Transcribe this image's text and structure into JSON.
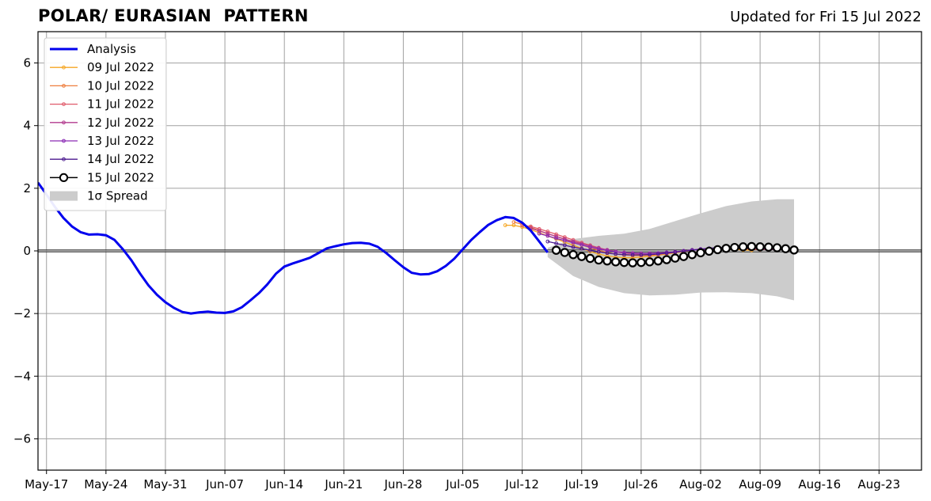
{
  "chart_data": {
    "type": "line",
    "title": "POLAR/ EURASIAN  PATTERN",
    "subtitle": "Updated for Fri 15 Jul 2022",
    "xlabel": "",
    "ylabel": "",
    "x_axis": {
      "type": "date",
      "range": [
        "2022-05-16",
        "2022-08-28"
      ],
      "ticks": [
        {
          "date": "2022-05-17",
          "label": "May-17"
        },
        {
          "date": "2022-05-24",
          "label": "May-24"
        },
        {
          "date": "2022-05-31",
          "label": "May-31"
        },
        {
          "date": "2022-06-07",
          "label": "Jun-07"
        },
        {
          "date": "2022-06-14",
          "label": "Jun-14"
        },
        {
          "date": "2022-06-21",
          "label": "Jun-21"
        },
        {
          "date": "2022-06-28",
          "label": "Jun-28"
        },
        {
          "date": "2022-07-05",
          "label": "Jul-05"
        },
        {
          "date": "2022-07-12",
          "label": "Jul-12"
        },
        {
          "date": "2022-07-19",
          "label": "Jul-19"
        },
        {
          "date": "2022-07-26",
          "label": "Jul-26"
        },
        {
          "date": "2022-08-02",
          "label": "Aug-02"
        },
        {
          "date": "2022-08-09",
          "label": "Aug-09"
        },
        {
          "date": "2022-08-16",
          "label": "Aug-16"
        },
        {
          "date": "2022-08-23",
          "label": "Aug-23"
        }
      ]
    },
    "y_axis": {
      "range": [
        -7,
        7
      ],
      "ticks": [
        {
          "value": 6,
          "label": "6"
        },
        {
          "value": 4,
          "label": "4"
        },
        {
          "value": 2,
          "label": "2"
        },
        {
          "value": 0,
          "label": "0"
        },
        {
          "value": -2,
          "label": "−2"
        },
        {
          "value": -4,
          "label": "−4"
        },
        {
          "value": -6,
          "label": "−6"
        }
      ]
    },
    "grid": true,
    "zero_line": true,
    "legend_position": "top-left",
    "spread": {
      "name": "1σ Spread",
      "color": "#cccccc",
      "dates": [
        "2022-07-15",
        "2022-07-18",
        "2022-07-21",
        "2022-07-24",
        "2022-07-27",
        "2022-07-30",
        "2022-08-02",
        "2022-08-05",
        "2022-08-08",
        "2022-08-11",
        "2022-08-13"
      ],
      "upper": [
        0.1,
        0.38,
        0.48,
        0.55,
        0.7,
        0.95,
        1.2,
        1.43,
        1.58,
        1.65,
        1.65
      ],
      "lower": [
        -0.2,
        -0.8,
        -1.15,
        -1.35,
        -1.42,
        -1.4,
        -1.33,
        -1.32,
        -1.35,
        -1.45,
        -1.58
      ]
    },
    "series": [
      {
        "name": "Analysis",
        "color": "#0000ee",
        "style": "analysis",
        "dates": [
          "2022-05-16",
          "2022-05-17",
          "2022-05-18",
          "2022-05-19",
          "2022-05-20",
          "2022-05-21",
          "2022-05-22",
          "2022-05-23",
          "2022-05-24",
          "2022-05-25",
          "2022-05-26",
          "2022-05-27",
          "2022-05-28",
          "2022-05-29",
          "2022-05-30",
          "2022-05-31",
          "2022-06-01",
          "2022-06-02",
          "2022-06-03",
          "2022-06-04",
          "2022-06-05",
          "2022-06-06",
          "2022-06-07",
          "2022-06-08",
          "2022-06-09",
          "2022-06-10",
          "2022-06-11",
          "2022-06-12",
          "2022-06-13",
          "2022-06-14",
          "2022-06-15",
          "2022-06-16",
          "2022-06-17",
          "2022-06-18",
          "2022-06-19",
          "2022-06-20",
          "2022-06-21",
          "2022-06-22",
          "2022-06-23",
          "2022-06-24",
          "2022-06-25",
          "2022-06-26",
          "2022-06-27",
          "2022-06-28",
          "2022-06-29",
          "2022-06-30",
          "2022-07-01",
          "2022-07-02",
          "2022-07-03",
          "2022-07-04",
          "2022-07-05",
          "2022-07-06",
          "2022-07-07",
          "2022-07-08",
          "2022-07-09",
          "2022-07-10",
          "2022-07-11",
          "2022-07-12",
          "2022-07-13",
          "2022-07-14",
          "2022-07-15"
        ],
        "values": [
          2.18,
          1.8,
          1.4,
          1.05,
          0.78,
          0.6,
          0.52,
          0.53,
          0.5,
          0.35,
          0.05,
          -0.3,
          -0.72,
          -1.1,
          -1.4,
          -1.64,
          -1.82,
          -1.95,
          -2.0,
          -1.96,
          -1.94,
          -1.97,
          -1.98,
          -1.93,
          -1.8,
          -1.58,
          -1.35,
          -1.07,
          -0.73,
          -0.5,
          -0.4,
          -0.31,
          -0.22,
          -0.07,
          0.08,
          0.15,
          0.21,
          0.25,
          0.26,
          0.23,
          0.13,
          -0.07,
          -0.3,
          -0.52,
          -0.7,
          -0.75,
          -0.74,
          -0.65,
          -0.48,
          -0.25,
          0.05,
          0.35,
          0.6,
          0.83,
          0.98,
          1.08,
          1.05,
          0.9,
          0.65,
          0.3,
          -0.05
        ]
      },
      {
        "name": "09 Jul 2022",
        "color": "#f5a623",
        "style": "small",
        "dates": [
          "2022-07-10",
          "2022-07-11",
          "2022-07-12",
          "2022-07-13",
          "2022-07-14",
          "2022-07-15",
          "2022-07-16",
          "2022-07-17",
          "2022-07-18",
          "2022-07-19",
          "2022-07-20",
          "2022-07-21",
          "2022-07-22",
          "2022-07-23",
          "2022-07-24",
          "2022-07-25",
          "2022-07-26",
          "2022-07-27",
          "2022-07-28",
          "2022-07-29",
          "2022-07-30",
          "2022-07-31",
          "2022-08-01",
          "2022-08-02",
          "2022-08-03",
          "2022-08-04",
          "2022-08-05",
          "2022-08-06",
          "2022-08-07",
          "2022-08-08"
        ],
        "values": [
          0.82,
          0.82,
          0.76,
          0.68,
          0.58,
          0.48,
          0.38,
          0.28,
          0.18,
          0.08,
          -0.02,
          -0.1,
          -0.16,
          -0.2,
          -0.22,
          -0.22,
          -0.2,
          -0.17,
          -0.14,
          -0.1,
          -0.06,
          -0.02,
          0.02,
          0.05,
          0.07,
          0.08,
          0.07,
          0.05,
          0.03,
          0.02
        ]
      },
      {
        "name": "10 Jul 2022",
        "color": "#ee7d3d",
        "style": "small",
        "dates": [
          "2022-07-11",
          "2022-07-12",
          "2022-07-13",
          "2022-07-14",
          "2022-07-15",
          "2022-07-16",
          "2022-07-17",
          "2022-07-18",
          "2022-07-19",
          "2022-07-20",
          "2022-07-21",
          "2022-07-22",
          "2022-07-23",
          "2022-07-24",
          "2022-07-25",
          "2022-07-26",
          "2022-07-27",
          "2022-07-28",
          "2022-07-29",
          "2022-07-30",
          "2022-07-31",
          "2022-08-01",
          "2022-08-02",
          "2022-08-03",
          "2022-08-04",
          "2022-08-05",
          "2022-08-06",
          "2022-08-07",
          "2022-08-08",
          "2022-08-09"
        ],
        "values": [
          0.92,
          0.85,
          0.75,
          0.65,
          0.55,
          0.46,
          0.37,
          0.28,
          0.19,
          0.1,
          0.02,
          -0.05,
          -0.1,
          -0.13,
          -0.15,
          -0.15,
          -0.14,
          -0.12,
          -0.09,
          -0.05,
          -0.01,
          0.02,
          0.05,
          0.07,
          0.08,
          0.08,
          0.07,
          0.06,
          0.05,
          0.04
        ]
      },
      {
        "name": "11 Jul 2022",
        "color": "#e05a6a",
        "style": "small",
        "dates": [
          "2022-07-12",
          "2022-07-13",
          "2022-07-14",
          "2022-07-15",
          "2022-07-16",
          "2022-07-17",
          "2022-07-18",
          "2022-07-19",
          "2022-07-20",
          "2022-07-21",
          "2022-07-22",
          "2022-07-23",
          "2022-07-24",
          "2022-07-25",
          "2022-07-26",
          "2022-07-27",
          "2022-07-28",
          "2022-07-29",
          "2022-07-30",
          "2022-07-31",
          "2022-08-01",
          "2022-08-02",
          "2022-08-03",
          "2022-08-04",
          "2022-08-05",
          "2022-08-06",
          "2022-08-07",
          "2022-08-08",
          "2022-08-09",
          "2022-08-10"
        ],
        "values": [
          0.82,
          0.78,
          0.7,
          0.62,
          0.53,
          0.44,
          0.35,
          0.26,
          0.18,
          0.1,
          0.03,
          -0.03,
          -0.07,
          -0.09,
          -0.1,
          -0.1,
          -0.09,
          -0.07,
          -0.04,
          -0.01,
          0.02,
          0.05,
          0.07,
          0.08,
          0.08,
          0.08,
          0.07,
          0.06,
          0.05,
          0.04
        ]
      },
      {
        "name": "12 Jul 2022",
        "color": "#b23a8e",
        "style": "small",
        "dates": [
          "2022-07-13",
          "2022-07-14",
          "2022-07-15",
          "2022-07-16",
          "2022-07-17",
          "2022-07-18",
          "2022-07-19",
          "2022-07-20",
          "2022-07-21",
          "2022-07-22",
          "2022-07-23",
          "2022-07-24",
          "2022-07-25",
          "2022-07-26",
          "2022-07-27",
          "2022-07-28",
          "2022-07-29",
          "2022-07-30",
          "2022-07-31",
          "2022-08-01",
          "2022-08-02",
          "2022-08-03",
          "2022-08-04",
          "2022-08-05",
          "2022-08-06",
          "2022-08-07",
          "2022-08-08",
          "2022-08-09",
          "2022-08-10",
          "2022-08-11"
        ],
        "values": [
          0.72,
          0.64,
          0.55,
          0.46,
          0.38,
          0.3,
          0.23,
          0.16,
          0.09,
          0.03,
          -0.02,
          -0.05,
          -0.07,
          -0.08,
          -0.08,
          -0.07,
          -0.05,
          -0.03,
          0.0,
          0.03,
          0.05,
          0.07,
          0.08,
          0.09,
          0.09,
          0.08,
          0.07,
          0.06,
          0.05,
          0.04
        ]
      },
      {
        "name": "13 Jul 2022",
        "color": "#8a2ab5",
        "style": "small",
        "dates": [
          "2022-07-14",
          "2022-07-15",
          "2022-07-16",
          "2022-07-17",
          "2022-07-18",
          "2022-07-19",
          "2022-07-20",
          "2022-07-21",
          "2022-07-22",
          "2022-07-23",
          "2022-07-24",
          "2022-07-25",
          "2022-07-26",
          "2022-07-27",
          "2022-07-28",
          "2022-07-29",
          "2022-07-30",
          "2022-07-31",
          "2022-08-01",
          "2022-08-02",
          "2022-08-03",
          "2022-08-04",
          "2022-08-05",
          "2022-08-06",
          "2022-08-07",
          "2022-08-08",
          "2022-08-09",
          "2022-08-10",
          "2022-08-11",
          "2022-08-12"
        ],
        "values": [
          0.55,
          0.48,
          0.4,
          0.33,
          0.26,
          0.19,
          0.12,
          0.06,
          0.01,
          -0.03,
          -0.06,
          -0.07,
          -0.08,
          -0.08,
          -0.07,
          -0.05,
          -0.03,
          0.0,
          0.03,
          0.06,
          0.08,
          0.1,
          0.11,
          0.11,
          0.11,
          0.1,
          0.09,
          0.08,
          0.07,
          0.05
        ]
      },
      {
        "name": "14 Jul 2022",
        "color": "#4b1a8f",
        "style": "small",
        "dates": [
          "2022-07-15",
          "2022-07-16",
          "2022-07-17",
          "2022-07-18",
          "2022-07-19",
          "2022-07-20",
          "2022-07-21",
          "2022-07-22",
          "2022-07-23",
          "2022-07-24",
          "2022-07-25",
          "2022-07-26",
          "2022-07-27",
          "2022-07-28",
          "2022-07-29",
          "2022-07-30",
          "2022-07-31",
          "2022-08-01",
          "2022-08-02",
          "2022-08-03",
          "2022-08-04",
          "2022-08-05",
          "2022-08-06",
          "2022-08-07",
          "2022-08-08",
          "2022-08-09",
          "2022-08-10",
          "2022-08-11",
          "2022-08-12",
          "2022-08-13"
        ],
        "values": [
          0.3,
          0.24,
          0.18,
          0.12,
          0.07,
          0.02,
          -0.03,
          -0.07,
          -0.1,
          -0.12,
          -0.13,
          -0.13,
          -0.12,
          -0.1,
          -0.07,
          -0.04,
          -0.01,
          0.02,
          0.05,
          0.08,
          0.1,
          0.11,
          0.12,
          0.12,
          0.12,
          0.11,
          0.1,
          0.08,
          0.07,
          0.05
        ]
      },
      {
        "name": "15 Jul 2022",
        "color": "#000000",
        "style": "big",
        "dates": [
          "2022-07-16",
          "2022-07-17",
          "2022-07-18",
          "2022-07-19",
          "2022-07-20",
          "2022-07-21",
          "2022-07-22",
          "2022-07-23",
          "2022-07-24",
          "2022-07-25",
          "2022-07-26",
          "2022-07-27",
          "2022-07-28",
          "2022-07-29",
          "2022-07-30",
          "2022-07-31",
          "2022-08-01",
          "2022-08-02",
          "2022-08-03",
          "2022-08-04",
          "2022-08-05",
          "2022-08-06",
          "2022-08-07",
          "2022-08-08",
          "2022-08-09",
          "2022-08-10",
          "2022-08-11",
          "2022-08-12",
          "2022-08-13"
        ],
        "values": [
          0.02,
          -0.05,
          -0.12,
          -0.18,
          -0.24,
          -0.29,
          -0.32,
          -0.35,
          -0.37,
          -0.38,
          -0.37,
          -0.35,
          -0.32,
          -0.28,
          -0.23,
          -0.18,
          -0.12,
          -0.06,
          -0.01,
          0.04,
          0.08,
          0.11,
          0.13,
          0.14,
          0.13,
          0.12,
          0.1,
          0.07,
          0.03
        ]
      }
    ]
  }
}
